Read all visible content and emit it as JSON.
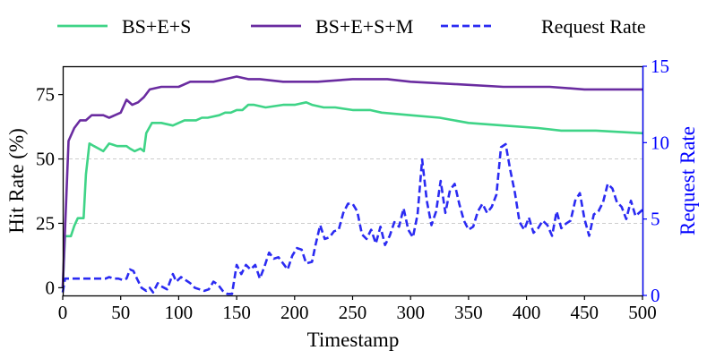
{
  "chart_data": {
    "type": "line",
    "title": "",
    "xlabel": "Timestamp",
    "ylabel": "Hit Rate (%)",
    "ylabel_right": "Request Rate",
    "xlim": [
      0,
      500
    ],
    "ylim": [
      -3,
      86
    ],
    "ylim_right": [
      0,
      15
    ],
    "x_ticks": [
      0,
      50,
      100,
      150,
      200,
      250,
      300,
      350,
      400,
      450,
      500
    ],
    "y_ticks": [
      0,
      25,
      50,
      75
    ],
    "y_ticks_right": [
      0,
      5,
      10,
      15
    ],
    "grid": "horizontal dashed at y = 25, 50",
    "legend": "top, outside plot",
    "series": [
      {
        "name": "BS+E+S",
        "axis": "left",
        "color": "#3fd487",
        "style": "solid",
        "points": [
          [
            0,
            0
          ],
          [
            2,
            20
          ],
          [
            7,
            20
          ],
          [
            10,
            24
          ],
          [
            13,
            27
          ],
          [
            18,
            27
          ],
          [
            20,
            44
          ],
          [
            23,
            56
          ],
          [
            27,
            55
          ],
          [
            31,
            54
          ],
          [
            35,
            53
          ],
          [
            40,
            56
          ],
          [
            47,
            55
          ],
          [
            52,
            55
          ],
          [
            55,
            55
          ],
          [
            58,
            54
          ],
          [
            62,
            53
          ],
          [
            67,
            54
          ],
          [
            70,
            53
          ],
          [
            72,
            60
          ],
          [
            77,
            64
          ],
          [
            85,
            64
          ],
          [
            95,
            63
          ],
          [
            100,
            64
          ],
          [
            105,
            65
          ],
          [
            115,
            65
          ],
          [
            120,
            66
          ],
          [
            125,
            66
          ],
          [
            135,
            67
          ],
          [
            140,
            68
          ],
          [
            145,
            68
          ],
          [
            150,
            69
          ],
          [
            155,
            69
          ],
          [
            160,
            71
          ],
          [
            165,
            71
          ],
          [
            175,
            70
          ],
          [
            190,
            71
          ],
          [
            200,
            71
          ],
          [
            210,
            72
          ],
          [
            215,
            71
          ],
          [
            225,
            70
          ],
          [
            235,
            70
          ],
          [
            250,
            69
          ],
          [
            265,
            69
          ],
          [
            275,
            68
          ],
          [
            300,
            67
          ],
          [
            325,
            66
          ],
          [
            350,
            64
          ],
          [
            380,
            63
          ],
          [
            410,
            62
          ],
          [
            430,
            61
          ],
          [
            460,
            61
          ],
          [
            500,
            60
          ]
        ]
      },
      {
        "name": "BS+E+S+M",
        "axis": "left",
        "color": "#6a2ca0",
        "style": "solid",
        "points": [
          [
            0,
            0
          ],
          [
            5,
            57
          ],
          [
            10,
            62
          ],
          [
            15,
            65
          ],
          [
            20,
            65
          ],
          [
            25,
            67
          ],
          [
            35,
            67
          ],
          [
            40,
            66
          ],
          [
            45,
            67
          ],
          [
            50,
            68
          ],
          [
            55,
            73
          ],
          [
            60,
            71
          ],
          [
            65,
            72
          ],
          [
            70,
            74
          ],
          [
            75,
            77
          ],
          [
            85,
            78
          ],
          [
            100,
            78
          ],
          [
            110,
            80
          ],
          [
            130,
            80
          ],
          [
            140,
            81
          ],
          [
            150,
            82
          ],
          [
            160,
            81
          ],
          [
            170,
            81
          ],
          [
            190,
            80
          ],
          [
            220,
            80
          ],
          [
            250,
            81
          ],
          [
            280,
            81
          ],
          [
            300,
            80
          ],
          [
            340,
            79
          ],
          [
            380,
            78
          ],
          [
            420,
            78
          ],
          [
            450,
            77
          ],
          [
            470,
            77
          ],
          [
            500,
            77
          ]
        ]
      },
      {
        "name": "Request Rate",
        "axis": "right",
        "color": "#2b2bf2",
        "style": "dashed",
        "points": [
          [
            0,
            0.2
          ],
          [
            2,
            1.1
          ],
          [
            10,
            1.1
          ],
          [
            20,
            1.1
          ],
          [
            30,
            1.1
          ],
          [
            37,
            1.1
          ],
          [
            40,
            1.2
          ],
          [
            44,
            1.1
          ],
          [
            48,
            1.1
          ],
          [
            52,
            1.0
          ],
          [
            55,
            1.1
          ],
          [
            58,
            1.7
          ],
          [
            61,
            1.6
          ],
          [
            64,
            1.1
          ],
          [
            68,
            0.5
          ],
          [
            72,
            0.3
          ],
          [
            75,
            0.5
          ],
          [
            78,
            0.2
          ],
          [
            82,
            0.8
          ],
          [
            85,
            0.6
          ],
          [
            90,
            0.4
          ],
          [
            95,
            1.4
          ],
          [
            98,
            0.9
          ],
          [
            102,
            1.2
          ],
          [
            106,
            1.0
          ],
          [
            110,
            0.8
          ],
          [
            114,
            0.5
          ],
          [
            118,
            0.4
          ],
          [
            122,
            0.3
          ],
          [
            126,
            0.4
          ],
          [
            130,
            0.9
          ],
          [
            134,
            0.7
          ],
          [
            138,
            0.3
          ],
          [
            142,
            0.1
          ],
          [
            146,
            0.1
          ],
          [
            150,
            2.0
          ],
          [
            154,
            1.4
          ],
          [
            158,
            2.0
          ],
          [
            162,
            1.7
          ],
          [
            166,
            2.0
          ],
          [
            170,
            1.1
          ],
          [
            174,
            1.9
          ],
          [
            178,
            2.8
          ],
          [
            182,
            2.4
          ],
          [
            186,
            2.5
          ],
          [
            190,
            2.1
          ],
          [
            194,
            1.7
          ],
          [
            198,
            2.6
          ],
          [
            202,
            3.1
          ],
          [
            206,
            3.0
          ],
          [
            210,
            2.1
          ],
          [
            215,
            2.2
          ],
          [
            218,
            3.3
          ],
          [
            222,
            4.6
          ],
          [
            226,
            3.7
          ],
          [
            230,
            3.8
          ],
          [
            234,
            4.2
          ],
          [
            238,
            4.3
          ],
          [
            242,
            5.4
          ],
          [
            246,
            6.0
          ],
          [
            250,
            6.0
          ],
          [
            254,
            5.5
          ],
          [
            258,
            4.0
          ],
          [
            262,
            3.7
          ],
          [
            266,
            4.3
          ],
          [
            270,
            3.4
          ],
          [
            274,
            4.5
          ],
          [
            278,
            3.3
          ],
          [
            282,
            3.9
          ],
          [
            286,
            4.8
          ],
          [
            290,
            4.5
          ],
          [
            294,
            5.7
          ],
          [
            298,
            4.3
          ],
          [
            302,
            3.8
          ],
          [
            306,
            5.3
          ],
          [
            310,
            8.9
          ],
          [
            314,
            6.2
          ],
          [
            318,
            4.6
          ],
          [
            322,
            5.5
          ],
          [
            326,
            7.5
          ],
          [
            330,
            5.4
          ],
          [
            334,
            6.9
          ],
          [
            338,
            7.3
          ],
          [
            342,
            6.0
          ],
          [
            346,
            4.9
          ],
          [
            350,
            4.3
          ],
          [
            354,
            4.5
          ],
          [
            358,
            5.5
          ],
          [
            362,
            6.0
          ],
          [
            366,
            5.4
          ],
          [
            370,
            5.8
          ],
          [
            374,
            6.6
          ],
          [
            378,
            9.7
          ],
          [
            382,
            9.9
          ],
          [
            386,
            8.2
          ],
          [
            390,
            6.7
          ],
          [
            394,
            4.8
          ],
          [
            398,
            4.3
          ],
          [
            402,
            5.1
          ],
          [
            406,
            4.1
          ],
          [
            410,
            4.4
          ],
          [
            414,
            4.9
          ],
          [
            418,
            4.6
          ],
          [
            422,
            3.9
          ],
          [
            426,
            5.5
          ],
          [
            430,
            4.4
          ],
          [
            434,
            4.7
          ],
          [
            438,
            4.9
          ],
          [
            442,
            6.2
          ],
          [
            446,
            6.7
          ],
          [
            450,
            5.0
          ],
          [
            454,
            3.9
          ],
          [
            458,
            5.3
          ],
          [
            462,
            5.5
          ],
          [
            466,
            6.1
          ],
          [
            470,
            7.3
          ],
          [
            474,
            7.0
          ],
          [
            478,
            6.1
          ],
          [
            482,
            5.8
          ],
          [
            486,
            5.0
          ],
          [
            490,
            6.2
          ],
          [
            494,
            5.2
          ],
          [
            500,
            5.6
          ]
        ]
      }
    ]
  }
}
